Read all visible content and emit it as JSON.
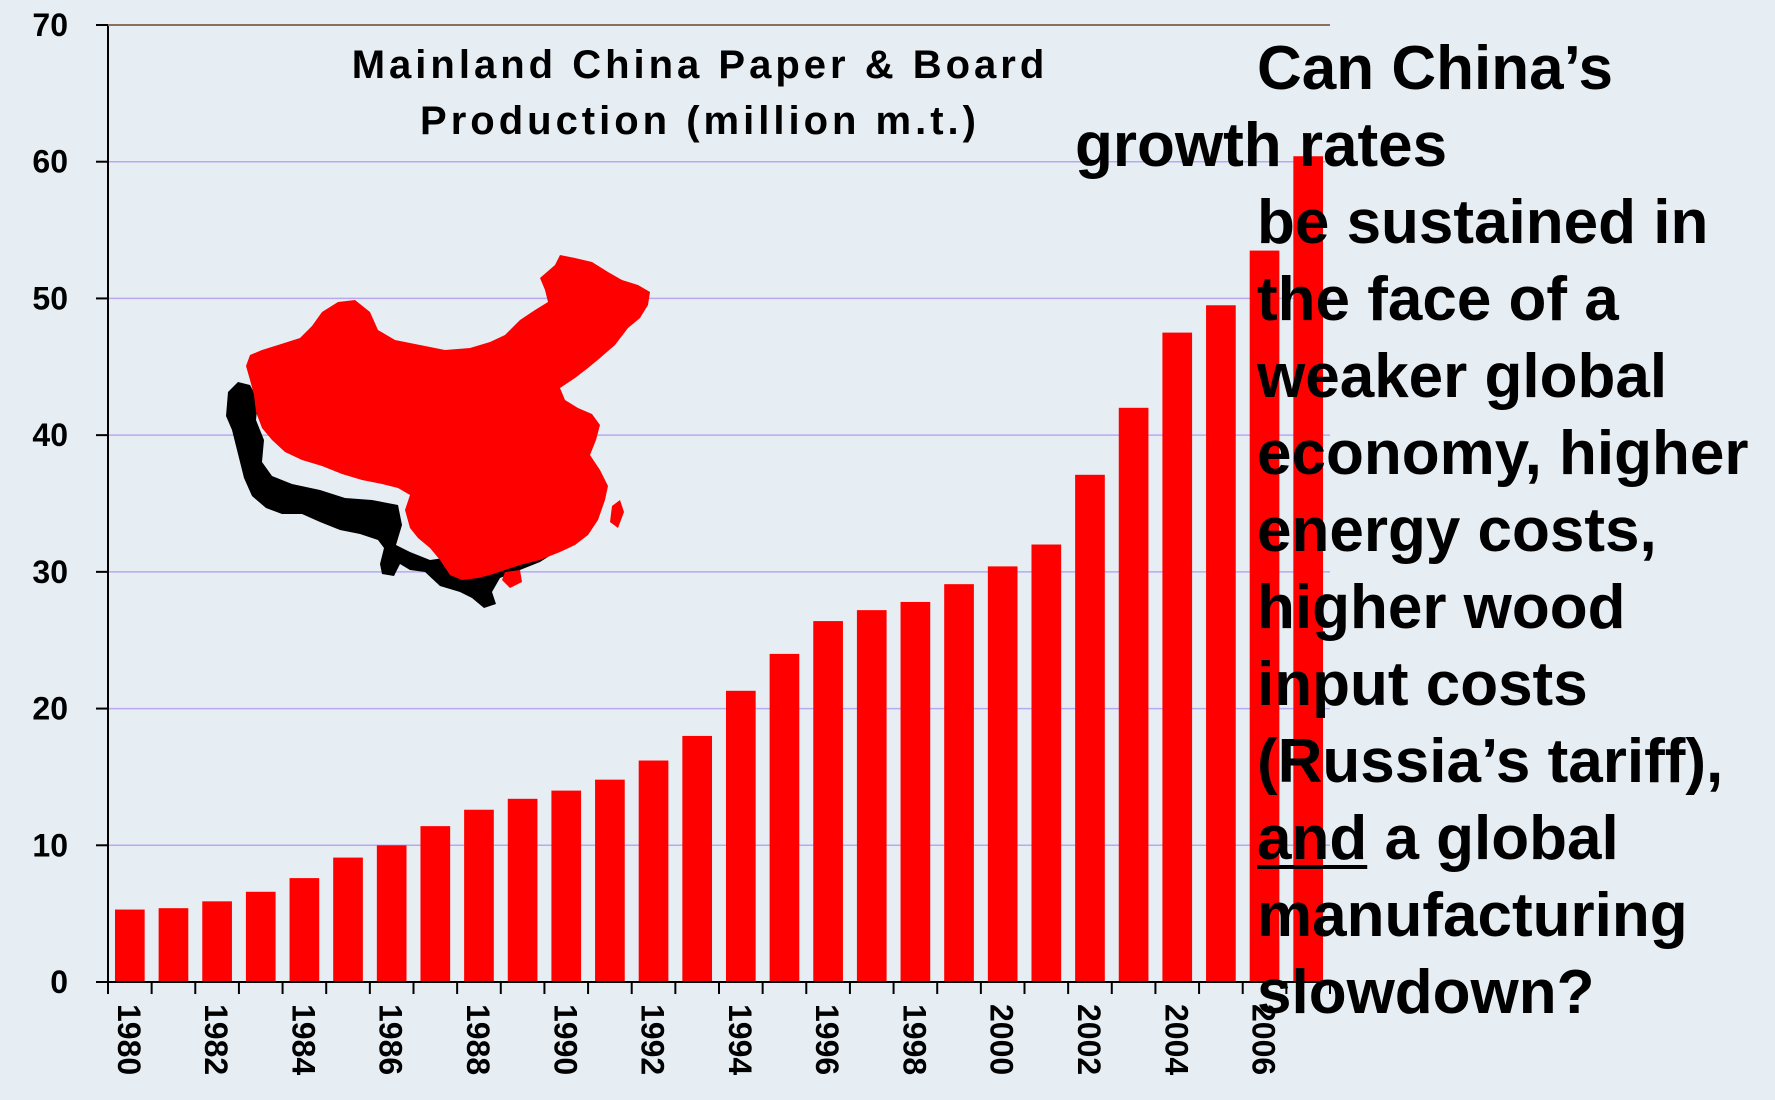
{
  "chart_data": {
    "type": "bar",
    "title_lines": [
      "Mainland China Paper & Board",
      "Production (million m.t.)"
    ],
    "categories": [
      "1980",
      "1981",
      "1982",
      "1983",
      "1984",
      "1985",
      "1986",
      "1987",
      "1988",
      "1989",
      "1990",
      "1991",
      "1992",
      "1993",
      "1994",
      "1995",
      "1996",
      "1997",
      "1998",
      "1999",
      "2000",
      "2001",
      "2002",
      "2003",
      "2004",
      "2005",
      "2006",
      "2007"
    ],
    "tick_labels": [
      "1980",
      "1982",
      "1984",
      "1986",
      "1988",
      "1990",
      "1992",
      "1994",
      "1996",
      "1998",
      "2000",
      "2002",
      "2004",
      "2006"
    ],
    "values": [
      5.3,
      5.4,
      5.9,
      6.6,
      7.6,
      9.1,
      10.0,
      11.4,
      12.6,
      13.4,
      14.0,
      14.8,
      16.2,
      18.0,
      21.3,
      24.0,
      26.4,
      27.2,
      27.8,
      29.1,
      30.4,
      32.0,
      37.1,
      42.0,
      47.5,
      49.5,
      53.5,
      60.4
    ],
    "ylim": [
      0,
      70
    ],
    "yticks": [
      0,
      10,
      20,
      30,
      40,
      50,
      60,
      70
    ],
    "grid": true,
    "bar_color": "#ff0000",
    "grid_color": "#b8a8f0",
    "background_color": "#e6eef4"
  },
  "question": {
    "lines": [
      {
        "text": "Can China’s",
        "indent": true
      },
      {
        "text": "growth rates",
        "indent": false
      },
      {
        "text": "be sustained in",
        "indent": true
      },
      {
        "text": "the face of a",
        "indent": true
      },
      {
        "text": "weaker global",
        "indent": true
      },
      {
        "text": "economy, higher",
        "indent": true
      },
      {
        "text": "energy costs,",
        "indent": true
      },
      {
        "text": "higher wood",
        "indent": true
      },
      {
        "text": "input costs",
        "indent": true
      },
      {
        "text": "(Russia’s tariff),",
        "indent": true
      }
    ],
    "underlined_word": "and",
    "line_after_underline": " a global",
    "tail_lines": [
      "manufacturing",
      "slowdown?"
    ]
  },
  "map": {
    "icon": "china-map-icon",
    "fill_color": "#ff0000",
    "shadow_color": "#000000"
  }
}
